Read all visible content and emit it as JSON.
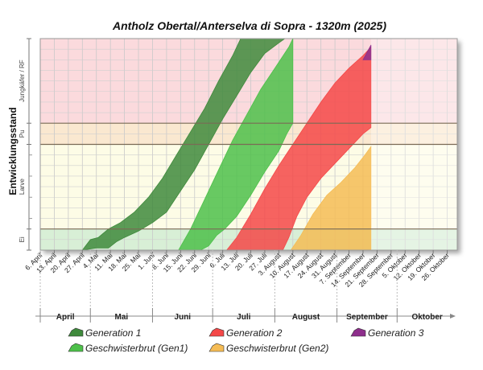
{
  "chart_data": {
    "type": "area",
    "title": "Antholz Obertal/Anterselva di Sopra - 1320m (2025)",
    "ylabel": "Entwicklungsstand",
    "stages": [
      {
        "key": "ei",
        "label": "Ei",
        "from": 0,
        "to": 0.1,
        "color": "#d8efd6"
      },
      {
        "key": "larve",
        "label": "Larve",
        "from": 0.1,
        "to": 0.5,
        "color": "#fdfce6"
      },
      {
        "key": "puppe",
        "label": "Pu",
        "from": 0.5,
        "to": 0.6,
        "color": "#fae8d0"
      },
      {
        "key": "kaefer",
        "label": "Jungkäfer / RF",
        "from": 0.6,
        "to": 1.0,
        "color": "#fbdadd"
      }
    ],
    "x_start": "2025-04-06",
    "x_end": "2025-10-31",
    "x_tick_labels": [
      "6. April",
      "13. April",
      "20. April",
      "27. April",
      "4. Mai",
      "11. Mai",
      "18. Mai",
      "25. Mai",
      "1. Juni",
      "8. Juni",
      "15. Juni",
      "22. Juni",
      "29. Juni",
      "6. Juli",
      "13. Juli",
      "20. Juli",
      "27. Juli",
      "3. August",
      "10. August",
      "17. August",
      "24. August",
      "31. August",
      "7. September",
      "14. September",
      "21. September",
      "28. September",
      "5. Oktober",
      "12. Oktober",
      "19. Oktober",
      "26. Oktober"
    ],
    "x_tick_dates": [
      "2025-04-06",
      "2025-04-13",
      "2025-04-20",
      "2025-04-27",
      "2025-05-04",
      "2025-05-11",
      "2025-05-18",
      "2025-05-25",
      "2025-06-01",
      "2025-06-08",
      "2025-06-15",
      "2025-06-22",
      "2025-06-29",
      "2025-07-06",
      "2025-07-13",
      "2025-07-20",
      "2025-07-27",
      "2025-08-03",
      "2025-08-10",
      "2025-08-17",
      "2025-08-24",
      "2025-08-31",
      "2025-09-07",
      "2025-09-14",
      "2025-09-21",
      "2025-09-28",
      "2025-10-05",
      "2025-10-12",
      "2025-10-19",
      "2025-10-26"
    ],
    "months": [
      {
        "label": "April",
        "start": "2025-04-01",
        "end": "2025-05-01"
      },
      {
        "label": "Mai",
        "start": "2025-05-01",
        "end": "2025-06-01"
      },
      {
        "label": "Juni",
        "start": "2025-06-01",
        "end": "2025-07-01"
      },
      {
        "label": "Juli",
        "start": "2025-07-01",
        "end": "2025-08-01"
      },
      {
        "label": "August",
        "start": "2025-08-01",
        "end": "2025-09-01"
      },
      {
        "label": "September",
        "start": "2025-09-01",
        "end": "2025-10-01"
      },
      {
        "label": "Oktober",
        "start": "2025-10-01",
        "end": "2025-11-01"
      }
    ],
    "shaded_until": "2025-09-18",
    "series": [
      {
        "name": "Generation 1",
        "color": "#3f8a3c",
        "upper": [
          [
            "2025-04-27",
            0
          ],
          [
            "2025-05-01",
            0.05
          ],
          [
            "2025-05-05",
            0.06
          ],
          [
            "2025-05-10",
            0.1
          ],
          [
            "2025-05-16",
            0.13
          ],
          [
            "2025-05-23",
            0.18
          ],
          [
            "2025-05-30",
            0.25
          ],
          [
            "2025-06-06",
            0.34
          ],
          [
            "2025-06-13",
            0.45
          ],
          [
            "2025-06-20",
            0.56
          ],
          [
            "2025-06-27",
            0.67
          ],
          [
            "2025-07-04",
            0.8
          ],
          [
            "2025-07-11",
            0.92
          ],
          [
            "2025-07-15",
            1.0
          ]
        ],
        "lower": [
          [
            "2025-04-27",
            0
          ],
          [
            "2025-05-04",
            0.01
          ],
          [
            "2025-05-10",
            0.01
          ],
          [
            "2025-05-14",
            0.04
          ],
          [
            "2025-05-18",
            0.06
          ],
          [
            "2025-05-25",
            0.09
          ],
          [
            "2025-06-01",
            0.13
          ],
          [
            "2025-06-08",
            0.18
          ],
          [
            "2025-06-15",
            0.28
          ],
          [
            "2025-06-22",
            0.38
          ],
          [
            "2025-06-29",
            0.5
          ],
          [
            "2025-07-06",
            0.62
          ],
          [
            "2025-07-13",
            0.73
          ],
          [
            "2025-07-20",
            0.84
          ],
          [
            "2025-07-27",
            0.93
          ],
          [
            "2025-08-03",
            0.98
          ],
          [
            "2025-08-06",
            1.0
          ]
        ]
      },
      {
        "name": "Geschwisterbrut (Gen1)",
        "color": "#4dc04a",
        "upper": [
          [
            "2025-06-14",
            0
          ],
          [
            "2025-06-20",
            0.1
          ],
          [
            "2025-06-27",
            0.24
          ],
          [
            "2025-07-04",
            0.38
          ],
          [
            "2025-07-11",
            0.52
          ],
          [
            "2025-07-18",
            0.64
          ],
          [
            "2025-07-25",
            0.76
          ],
          [
            "2025-08-01",
            0.86
          ],
          [
            "2025-08-08",
            0.96
          ],
          [
            "2025-08-10",
            1.0
          ]
        ],
        "lower": [
          [
            "2025-06-25",
            0
          ],
          [
            "2025-06-29",
            0.02
          ],
          [
            "2025-07-03",
            0.07
          ],
          [
            "2025-07-07",
            0.1
          ],
          [
            "2025-07-13",
            0.16
          ],
          [
            "2025-07-20",
            0.26
          ],
          [
            "2025-07-27",
            0.37
          ],
          [
            "2025-08-03",
            0.47
          ],
          [
            "2025-08-07",
            0.55
          ],
          [
            "2025-08-10",
            0.6
          ]
        ]
      },
      {
        "name": "Generation 2",
        "color": "#f44848",
        "upper": [
          [
            "2025-07-08",
            0
          ],
          [
            "2025-07-13",
            0.06
          ],
          [
            "2025-07-20",
            0.17
          ],
          [
            "2025-07-27",
            0.29
          ],
          [
            "2025-08-03",
            0.4
          ],
          [
            "2025-08-10",
            0.5
          ],
          [
            "2025-08-17",
            0.6
          ],
          [
            "2025-08-24",
            0.7
          ],
          [
            "2025-08-31",
            0.79
          ],
          [
            "2025-09-07",
            0.86
          ],
          [
            "2025-09-14",
            0.92
          ],
          [
            "2025-09-18",
            0.96
          ]
        ],
        "lower": [
          [
            "2025-08-05",
            0
          ],
          [
            "2025-08-08",
            0.06
          ],
          [
            "2025-08-12",
            0.16
          ],
          [
            "2025-08-17",
            0.25
          ],
          [
            "2025-08-24",
            0.34
          ],
          [
            "2025-08-31",
            0.41
          ],
          [
            "2025-09-07",
            0.48
          ],
          [
            "2025-09-14",
            0.55
          ],
          [
            "2025-09-18",
            0.58
          ]
        ]
      },
      {
        "name": "Geschwisterbrut (Gen2)",
        "color": "#f5bc55",
        "upper": [
          [
            "2025-08-09",
            0
          ],
          [
            "2025-08-14",
            0.07
          ],
          [
            "2025-08-20",
            0.17
          ],
          [
            "2025-08-27",
            0.26
          ],
          [
            "2025-09-03",
            0.32
          ],
          [
            "2025-09-10",
            0.39
          ],
          [
            "2025-09-15",
            0.45
          ],
          [
            "2025-09-18",
            0.49
          ]
        ],
        "lower": [
          [
            "2025-08-28",
            0
          ],
          [
            "2025-09-18",
            0
          ]
        ]
      },
      {
        "name": "Generation 3",
        "color": "#8e2e8c",
        "upper": [
          [
            "2025-09-14",
            0.9
          ],
          [
            "2025-09-18",
            0.97
          ]
        ],
        "lower": [
          [
            "2025-09-14",
            0.9
          ],
          [
            "2025-09-18",
            0.9
          ]
        ]
      }
    ],
    "legend_rows": [
      [
        "Generation 1",
        "Generation 2",
        "Generation 3"
      ],
      [
        "Geschwisterbrut (Gen1)",
        "Geschwisterbrut (Gen2)"
      ]
    ]
  }
}
